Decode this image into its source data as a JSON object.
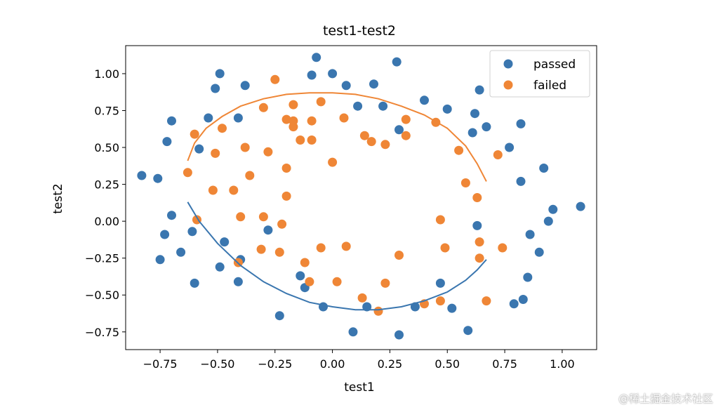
{
  "watermark": "@稀土掘金技术社区",
  "chart_data": {
    "type": "scatter",
    "title": "test1-test2",
    "xlabel": "test1",
    "ylabel": "test2",
    "xlim": [
      -0.9,
      1.15
    ],
    "ylim": [
      -0.87,
      1.19
    ],
    "xticks": [
      "−0.75",
      "−0.50",
      "−0.25",
      "0.00",
      "0.25",
      "0.50",
      "0.75",
      "1.00"
    ],
    "xtick_values": [
      -0.75,
      -0.5,
      -0.25,
      0,
      0.25,
      0.5,
      0.75,
      1.0
    ],
    "yticks": [
      "−0.75",
      "−0.50",
      "−0.25",
      "0.00",
      "0.25",
      "0.50",
      "0.75",
      "1.00"
    ],
    "ytick_values": [
      -0.75,
      -0.5,
      -0.25,
      0,
      0.25,
      0.5,
      0.75,
      1.0
    ],
    "grid": false,
    "legend_position": "top-right",
    "colors": {
      "passed": "#3a76af",
      "failed": "#ef8636",
      "axes": "#000000"
    },
    "series": [
      {
        "name": "passed",
        "points": [
          [
            -0.83,
            0.31
          ],
          [
            -0.76,
            0.29
          ],
          [
            -0.75,
            -0.26
          ],
          [
            -0.73,
            -0.09
          ],
          [
            -0.72,
            0.54
          ],
          [
            -0.7,
            0.68
          ],
          [
            -0.7,
            0.04
          ],
          [
            -0.66,
            -0.21
          ],
          [
            -0.61,
            -0.07
          ],
          [
            -0.6,
            -0.42
          ],
          [
            -0.58,
            0.49
          ],
          [
            -0.54,
            0.7
          ],
          [
            -0.51,
            0.9
          ],
          [
            -0.49,
            1.0
          ],
          [
            -0.49,
            -0.31
          ],
          [
            -0.47,
            -0.14
          ],
          [
            -0.41,
            0.7
          ],
          [
            -0.4,
            -0.26
          ],
          [
            -0.41,
            -0.41
          ],
          [
            -0.38,
            0.92
          ],
          [
            -0.28,
            -0.06
          ],
          [
            -0.23,
            -0.64
          ],
          [
            -0.14,
            -0.37
          ],
          [
            -0.12,
            -0.45
          ],
          [
            -0.09,
            0.99
          ],
          [
            -0.07,
            1.11
          ],
          [
            -0.04,
            -0.58
          ],
          [
            0.0,
            1.0
          ],
          [
            0.06,
            0.92
          ],
          [
            0.09,
            -0.75
          ],
          [
            0.11,
            0.78
          ],
          [
            0.15,
            -0.58
          ],
          [
            0.18,
            0.93
          ],
          [
            0.22,
            0.78
          ],
          [
            0.28,
            1.08
          ],
          [
            0.29,
            0.62
          ],
          [
            0.29,
            -0.77
          ],
          [
            0.36,
            -0.58
          ],
          [
            0.4,
            0.82
          ],
          [
            0.47,
            -0.42
          ],
          [
            0.5,
            0.76
          ],
          [
            0.52,
            -0.59
          ],
          [
            0.59,
            -0.74
          ],
          [
            0.61,
            0.6
          ],
          [
            0.62,
            0.73
          ],
          [
            0.63,
            -0.03
          ],
          [
            0.64,
            0.89
          ],
          [
            0.67,
            0.64
          ],
          [
            0.77,
            0.5
          ],
          [
            0.79,
            -0.56
          ],
          [
            0.82,
            0.66
          ],
          [
            0.82,
            0.27
          ],
          [
            0.83,
            -0.53
          ],
          [
            0.85,
            -0.38
          ],
          [
            0.86,
            -0.09
          ],
          [
            0.9,
            -0.21
          ],
          [
            0.92,
            0.36
          ],
          [
            0.94,
            0.0
          ],
          [
            0.96,
            0.08
          ],
          [
            1.08,
            0.1
          ]
        ]
      },
      {
        "name": "failed",
        "points": [
          [
            -0.63,
            0.33
          ],
          [
            -0.6,
            0.59
          ],
          [
            -0.59,
            0.01
          ],
          [
            -0.51,
            0.46
          ],
          [
            -0.52,
            0.21
          ],
          [
            -0.48,
            0.63
          ],
          [
            -0.43,
            0.21
          ],
          [
            -0.4,
            0.03
          ],
          [
            -0.38,
            0.5
          ],
          [
            -0.36,
            0.31
          ],
          [
            -0.41,
            -0.28
          ],
          [
            -0.3,
            0.77
          ],
          [
            -0.3,
            0.03
          ],
          [
            -0.31,
            -0.19
          ],
          [
            -0.28,
            0.47
          ],
          [
            -0.25,
            0.96
          ],
          [
            -0.23,
            -0.21
          ],
          [
            -0.22,
            -0.02
          ],
          [
            -0.2,
            0.69
          ],
          [
            -0.2,
            0.36
          ],
          [
            -0.2,
            0.17
          ],
          [
            -0.17,
            0.79
          ],
          [
            -0.17,
            0.68
          ],
          [
            -0.17,
            0.64
          ],
          [
            -0.14,
            0.55
          ],
          [
            -0.12,
            -0.28
          ],
          [
            -0.1,
            -0.41
          ],
          [
            -0.09,
            0.55
          ],
          [
            -0.09,
            0.68
          ],
          [
            -0.05,
            0.81
          ],
          [
            -0.05,
            -0.18
          ],
          [
            0.0,
            0.4
          ],
          [
            0.02,
            -0.41
          ],
          [
            0.05,
            0.7
          ],
          [
            0.06,
            -0.17
          ],
          [
            0.13,
            -0.52
          ],
          [
            0.14,
            0.58
          ],
          [
            0.17,
            0.54
          ],
          [
            0.2,
            -0.61
          ],
          [
            0.23,
            0.52
          ],
          [
            0.23,
            -0.42
          ],
          [
            0.29,
            -0.23
          ],
          [
            0.32,
            0.69
          ],
          [
            0.32,
            0.58
          ],
          [
            0.4,
            -0.56
          ],
          [
            0.45,
            0.67
          ],
          [
            0.47,
            0.01
          ],
          [
            0.47,
            -0.54
          ],
          [
            0.49,
            -0.18
          ],
          [
            0.55,
            0.48
          ],
          [
            0.58,
            0.26
          ],
          [
            0.63,
            0.16
          ],
          [
            0.64,
            -0.14
          ],
          [
            0.64,
            -0.25
          ],
          [
            0.67,
            -0.54
          ],
          [
            0.72,
            0.45
          ],
          [
            0.74,
            -0.18
          ]
        ]
      }
    ],
    "boundary_curves": [
      {
        "color": "#ef8636",
        "points": [
          [
            -0.63,
            0.41
          ],
          [
            -0.6,
            0.53
          ],
          [
            -0.55,
            0.63
          ],
          [
            -0.48,
            0.71
          ],
          [
            -0.4,
            0.78
          ],
          [
            -0.3,
            0.83
          ],
          [
            -0.2,
            0.86
          ],
          [
            -0.1,
            0.87
          ],
          [
            0.0,
            0.87
          ],
          [
            0.1,
            0.86
          ],
          [
            0.2,
            0.83
          ],
          [
            0.3,
            0.78
          ],
          [
            0.4,
            0.72
          ],
          [
            0.5,
            0.63
          ],
          [
            0.58,
            0.51
          ],
          [
            0.63,
            0.39
          ],
          [
            0.67,
            0.27
          ]
        ]
      },
      {
        "color": "#3a76af",
        "points": [
          [
            -0.63,
            0.13
          ],
          [
            -0.58,
            0.0
          ],
          [
            -0.5,
            -0.15
          ],
          [
            -0.4,
            -0.3
          ],
          [
            -0.3,
            -0.41
          ],
          [
            -0.2,
            -0.49
          ],
          [
            -0.1,
            -0.55
          ],
          [
            0.0,
            -0.58
          ],
          [
            0.1,
            -0.6
          ],
          [
            0.2,
            -0.6
          ],
          [
            0.3,
            -0.58
          ],
          [
            0.4,
            -0.54
          ],
          [
            0.5,
            -0.48
          ],
          [
            0.58,
            -0.4
          ],
          [
            0.63,
            -0.33
          ],
          [
            0.67,
            -0.26
          ]
        ]
      }
    ]
  }
}
